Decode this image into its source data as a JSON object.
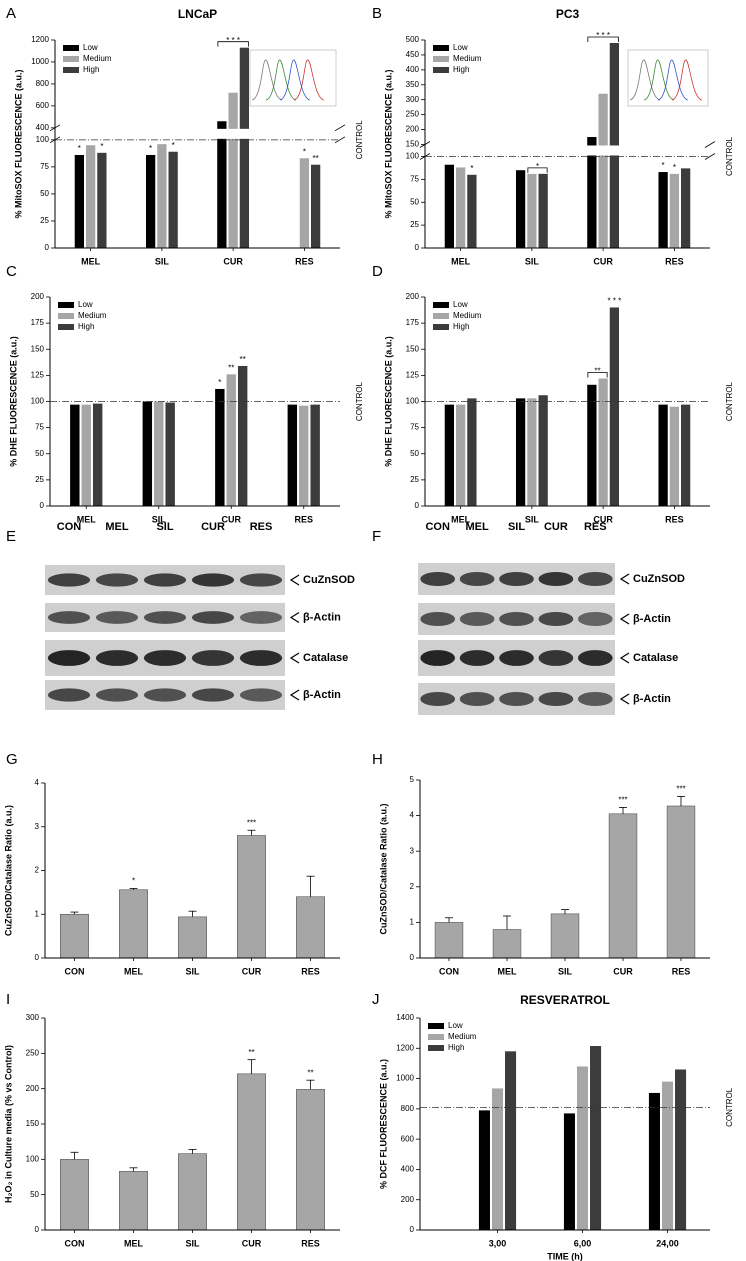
{
  "chart_data": [
    {
      "panel": "A",
      "type": "bar",
      "title": "LNCaP",
      "ylabel": "% MitoSOX FLUORESCENCE (a.u.)",
      "categories": [
        "MEL",
        "SIL",
        "CUR",
        "RES"
      ],
      "series": [
        {
          "name": "Low",
          "color": "#000000",
          "values": [
            86,
            86,
            460,
            null
          ],
          "significance": [
            "*",
            "*",
            null,
            null
          ]
        },
        {
          "name": "Medium",
          "color": "#a6a6a6",
          "values": [
            95,
            96,
            720,
            83
          ],
          "significance": [
            null,
            null,
            null,
            "*"
          ]
        },
        {
          "name": "High",
          "color": "#3c3c3c",
          "values": [
            88,
            89,
            1130,
            77
          ],
          "significance": [
            "*",
            "*",
            null,
            "**"
          ]
        }
      ],
      "ylim": [
        0,
        1200
      ],
      "ybreak": [
        100,
        400
      ],
      "yticks": [
        0,
        25,
        50,
        75,
        100,
        400,
        600,
        800,
        1000,
        1200
      ],
      "reference_line": {
        "value": 100,
        "label": "CONTROL"
      },
      "legend": "upper left",
      "brackets": [
        {
          "category": "CUR",
          "series": [
            "Low",
            "High"
          ],
          "label": "* * *"
        }
      ]
    },
    {
      "panel": "B",
      "type": "bar",
      "title": "PC3",
      "ylabel": "% MitoSOX FLUORESCENCE (a.u.)",
      "categories": [
        "MEL",
        "SIL",
        "CUR",
        "RES"
      ],
      "series": [
        {
          "name": "Low",
          "color": "#000000",
          "values": [
            91,
            85,
            175,
            83
          ],
          "significance": [
            null,
            null,
            null,
            "*"
          ]
        },
        {
          "name": "Medium",
          "color": "#a6a6a6",
          "values": [
            88,
            81,
            320,
            81
          ],
          "significance": [
            null,
            null,
            null,
            "*"
          ]
        },
        {
          "name": "High",
          "color": "#3c3c3c",
          "values": [
            80,
            81,
            490,
            87
          ],
          "significance": [
            "*",
            null,
            null,
            null
          ]
        }
      ],
      "ylim": [
        0,
        500
      ],
      "ybreak": [
        100,
        150
      ],
      "yticks": [
        0,
        25,
        50,
        75,
        100,
        150,
        200,
        250,
        300,
        350,
        400,
        450,
        500
      ],
      "reference_line": {
        "value": 100,
        "label": "CONTROL"
      },
      "legend": "upper left",
      "brackets": [
        {
          "category": "SIL",
          "series": [
            "Medium",
            "High"
          ],
          "label": "*"
        },
        {
          "category": "CUR",
          "series": [
            "Low",
            "High"
          ],
          "label": "* * *"
        }
      ]
    },
    {
      "panel": "C",
      "type": "bar",
      "ylabel": "% DHE FLUORESCENCE (a.u.)",
      "categories": [
        "MEL",
        "SIL",
        "CUR",
        "RES"
      ],
      "series": [
        {
          "name": "Low",
          "color": "#000000",
          "values": [
            97,
            100,
            112,
            97
          ],
          "significance": [
            null,
            null,
            "*",
            null
          ]
        },
        {
          "name": "Medium",
          "color": "#a6a6a6",
          "values": [
            97,
            100,
            126,
            96
          ],
          "significance": [
            null,
            null,
            "**",
            null
          ]
        },
        {
          "name": "High",
          "color": "#3c3c3c",
          "values": [
            98,
            99,
            134,
            97
          ],
          "significance": [
            null,
            null,
            "**",
            null
          ]
        }
      ],
      "ylim": [
        0,
        200
      ],
      "yticks": [
        0,
        25,
        50,
        75,
        100,
        125,
        150,
        175,
        200
      ],
      "reference_line": {
        "value": 100,
        "label": "CONTROL"
      },
      "legend": "upper left"
    },
    {
      "panel": "D",
      "type": "bar",
      "ylabel": "% DHE FLUORESCENCE (a.u.)",
      "categories": [
        "MEL",
        "SIL",
        "CUR",
        "RES"
      ],
      "series": [
        {
          "name": "Low",
          "color": "#000000",
          "values": [
            97,
            103,
            116,
            97
          ],
          "significance": [
            null,
            null,
            null,
            null
          ]
        },
        {
          "name": "Medium",
          "color": "#a6a6a6",
          "values": [
            97,
            103,
            122,
            95
          ],
          "significance": [
            null,
            null,
            null,
            null
          ]
        },
        {
          "name": "High",
          "color": "#3c3c3c",
          "values": [
            103,
            106,
            190,
            97
          ],
          "significance": [
            null,
            null,
            "* * *",
            null
          ]
        }
      ],
      "ylim": [
        0,
        200
      ],
      "yticks": [
        0,
        25,
        50,
        75,
        100,
        125,
        150,
        175,
        200
      ],
      "reference_line": {
        "value": 100,
        "label": "CONTROL"
      },
      "legend": "upper left",
      "brackets": [
        {
          "category": "CUR",
          "series": [
            "Low",
            "Medium"
          ],
          "label": "**"
        }
      ]
    },
    {
      "panel": "G",
      "type": "bar",
      "ylabel": "CuZnSOD/Catalase Ratio (a.u.)",
      "categories": [
        "CON",
        "MEL",
        "SIL",
        "CUR",
        "RES"
      ],
      "color": "#a6a6a6",
      "values": [
        1.0,
        1.56,
        0.94,
        2.8,
        1.4
      ],
      "errors": [
        0.05,
        0.03,
        0.13,
        0.12,
        0.47
      ],
      "significance": [
        null,
        "*",
        null,
        "***",
        null
      ],
      "ylim": [
        0,
        4
      ],
      "yticks": [
        0,
        1,
        2,
        3,
        4
      ]
    },
    {
      "panel": "H",
      "type": "bar",
      "ylabel": "CuZnSOD/Catalase Ratio (a.u.)",
      "categories": [
        "CON",
        "MEL",
        "SIL",
        "CUR",
        "RES"
      ],
      "color": "#a6a6a6",
      "values": [
        1.0,
        0.8,
        1.24,
        4.05,
        4.27
      ],
      "errors": [
        0.13,
        0.38,
        0.12,
        0.18,
        0.27
      ],
      "significance": [
        null,
        null,
        null,
        "***",
        "***"
      ],
      "ylim": [
        0,
        5
      ],
      "yticks": [
        0,
        1,
        2,
        3,
        4,
        5
      ]
    },
    {
      "panel": "I",
      "type": "bar",
      "ylabel": "H₂O₂ in Culture media (% vs Control)",
      "categories": [
        "CON",
        "MEL",
        "SIL",
        "CUR",
        "RES"
      ],
      "color": "#a6a6a6",
      "values": [
        100,
        83,
        108,
        221,
        199
      ],
      "errors": [
        10,
        5,
        6,
        20,
        13
      ],
      "significance": [
        null,
        null,
        null,
        "**",
        "**"
      ],
      "ylim": [
        0,
        300
      ],
      "yticks": [
        0,
        50,
        100,
        150,
        200,
        250,
        300
      ]
    },
    {
      "panel": "J",
      "type": "bar",
      "title": "RESVERATROL",
      "xlabel": "TIME (h)",
      "ylabel": "% DCF FLUORESCENCE (a.u.)",
      "categories": [
        "3,00",
        "6,00",
        "24,00"
      ],
      "series": [
        {
          "name": "Low",
          "color": "#000000",
          "values": [
            790,
            770,
            905
          ]
        },
        {
          "name": "Medium",
          "color": "#a6a6a6",
          "values": [
            935,
            1080,
            980
          ]
        },
        {
          "name": "High",
          "color": "#3c3c3c",
          "values": [
            1180,
            1215,
            1060
          ]
        }
      ],
      "ylim": [
        0,
        1400
      ],
      "yticks": [
        0,
        200,
        400,
        600,
        800,
        1000,
        1200,
        1400
      ],
      "reference_line": {
        "value": 810,
        "label": "CONTROL"
      },
      "legend": "upper left"
    }
  ],
  "blots": [
    {
      "panel": "E",
      "lanes": [
        "CON",
        "MEL",
        "SIL",
        "CUR",
        "RES"
      ],
      "rows": [
        "CuZnSOD",
        "β-Actin",
        "Catalase",
        "β-Actin"
      ]
    },
    {
      "panel": "F",
      "lanes": [
        "CON",
        "MEL",
        "SIL",
        "CUR",
        "RES"
      ],
      "rows": [
        "CuZnSOD",
        "β-Actin",
        "Catalase",
        "β-Actin"
      ]
    }
  ]
}
